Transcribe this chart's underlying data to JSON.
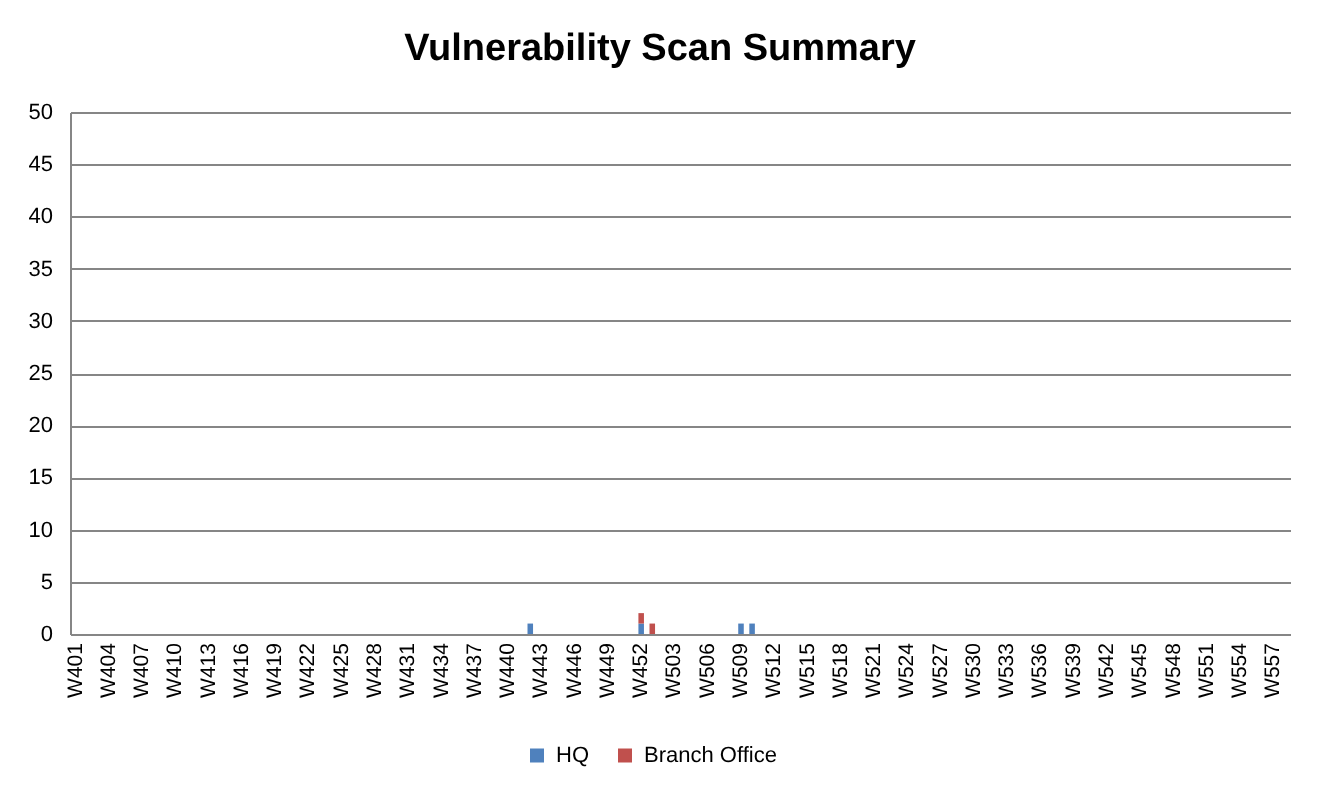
{
  "chart_data": {
    "type": "bar",
    "title": "Vulnerability Scan Summary",
    "stacked": true,
    "categories": [
      "W401",
      null,
      null,
      "W404",
      null,
      null,
      "W407",
      null,
      null,
      "W410",
      null,
      null,
      "W413",
      null,
      null,
      "W416",
      null,
      null,
      "W419",
      null,
      null,
      "W422",
      null,
      null,
      "W425",
      null,
      null,
      "W428",
      null,
      null,
      "W431",
      null,
      null,
      "W434",
      null,
      null,
      "W437",
      null,
      null,
      "W440",
      null,
      null,
      "W443",
      null,
      null,
      "W446",
      null,
      null,
      "W449",
      null,
      null,
      "W452",
      null,
      null,
      "W503",
      null,
      null,
      "W506",
      null,
      null,
      "W509",
      null,
      null,
      "W512",
      null,
      null,
      "W515",
      null,
      null,
      "W518",
      null,
      null,
      "W521",
      null,
      null,
      "W524",
      null,
      null,
      "W527",
      null,
      null,
      "W530",
      null,
      null,
      "W533",
      null,
      null,
      "W536",
      null,
      null,
      "W539",
      null,
      null,
      "W542",
      null,
      null,
      "W545",
      null,
      null,
      "W548",
      null,
      null,
      "W551",
      null,
      null,
      "W554",
      null,
      null,
      "W557",
      null
    ],
    "series": [
      {
        "name": "HQ",
        "color": "#4f81bd",
        "values": [
          0,
          0,
          0,
          0,
          0,
          0,
          0,
          0,
          0,
          0,
          0,
          0,
          0,
          0,
          0,
          0,
          0,
          0,
          0,
          0,
          0,
          0,
          0,
          0,
          0,
          0,
          0,
          0,
          0,
          0,
          0,
          0,
          0,
          0,
          0,
          0,
          0,
          0,
          0,
          0,
          0,
          1,
          0,
          0,
          0,
          0,
          0,
          0,
          0,
          0,
          0,
          1,
          0,
          0,
          0,
          0,
          0,
          0,
          0,
          0,
          1,
          1,
          0,
          0,
          0,
          0,
          0,
          0,
          0,
          0,
          0,
          0,
          0,
          0,
          0,
          0,
          0,
          0,
          0,
          0,
          0,
          0,
          0,
          0,
          0,
          0,
          0,
          0,
          0,
          0,
          0,
          0,
          0,
          0,
          0,
          0,
          0,
          0,
          0,
          0,
          0,
          0,
          0,
          0,
          0,
          0,
          0,
          0,
          0,
          0
        ]
      },
      {
        "name": "Branch Office",
        "color": "#c0504d",
        "values": [
          0,
          0,
          0,
          0,
          0,
          0,
          0,
          0,
          0,
          0,
          0,
          0,
          0,
          0,
          0,
          0,
          0,
          0,
          0,
          0,
          0,
          0,
          0,
          0,
          0,
          0,
          0,
          0,
          0,
          0,
          0,
          0,
          0,
          0,
          0,
          0,
          0,
          0,
          0,
          0,
          0,
          0,
          0,
          0,
          0,
          0,
          0,
          0,
          0,
          0,
          0,
          1,
          1,
          0,
          0,
          0,
          0,
          0,
          0,
          0,
          0,
          0,
          0,
          0,
          0,
          0,
          0,
          0,
          0,
          0,
          0,
          0,
          0,
          0,
          0,
          0,
          0,
          0,
          0,
          0,
          0,
          0,
          0,
          0,
          0,
          0,
          0,
          0,
          0,
          0,
          0,
          0,
          0,
          0,
          0,
          0,
          0,
          0,
          0,
          0,
          0,
          0,
          0,
          0,
          0,
          0,
          0,
          0,
          0,
          0
        ]
      }
    ],
    "ylim": [
      0,
      50
    ],
    "yticks": [
      0,
      5,
      10,
      15,
      20,
      25,
      30,
      35,
      40,
      45,
      50
    ],
    "grid": "y",
    "legend": "bottom"
  }
}
